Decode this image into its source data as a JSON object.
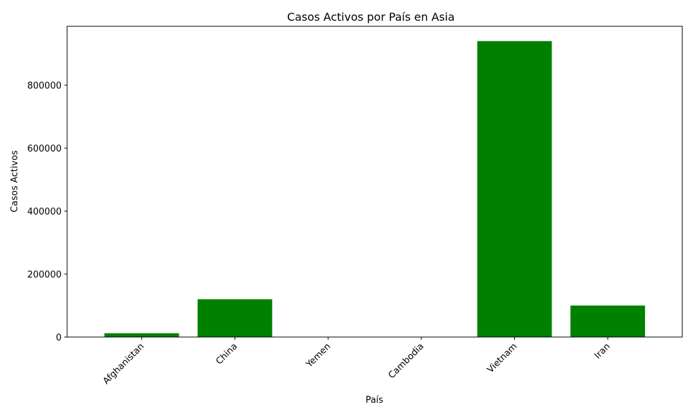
{
  "chart_data": {
    "type": "bar",
    "title": "Casos Activos por País en Asia",
    "xlabel": "País",
    "ylabel": "Casos Activos",
    "categories": [
      "Afghanistan",
      "China",
      "Yemen",
      "Cambodia",
      "Vietnam",
      "Iran"
    ],
    "values": [
      12000,
      120000,
      0,
      0,
      940000,
      100000
    ],
    "ylim": [
      0,
      987000
    ],
    "yticks": [
      0,
      200000,
      400000,
      600000,
      800000
    ],
    "ytick_labels": [
      "0",
      "200000",
      "400000",
      "600000",
      "800000"
    ],
    "bar_color": "#008000",
    "grid": false,
    "legend": "none"
  }
}
